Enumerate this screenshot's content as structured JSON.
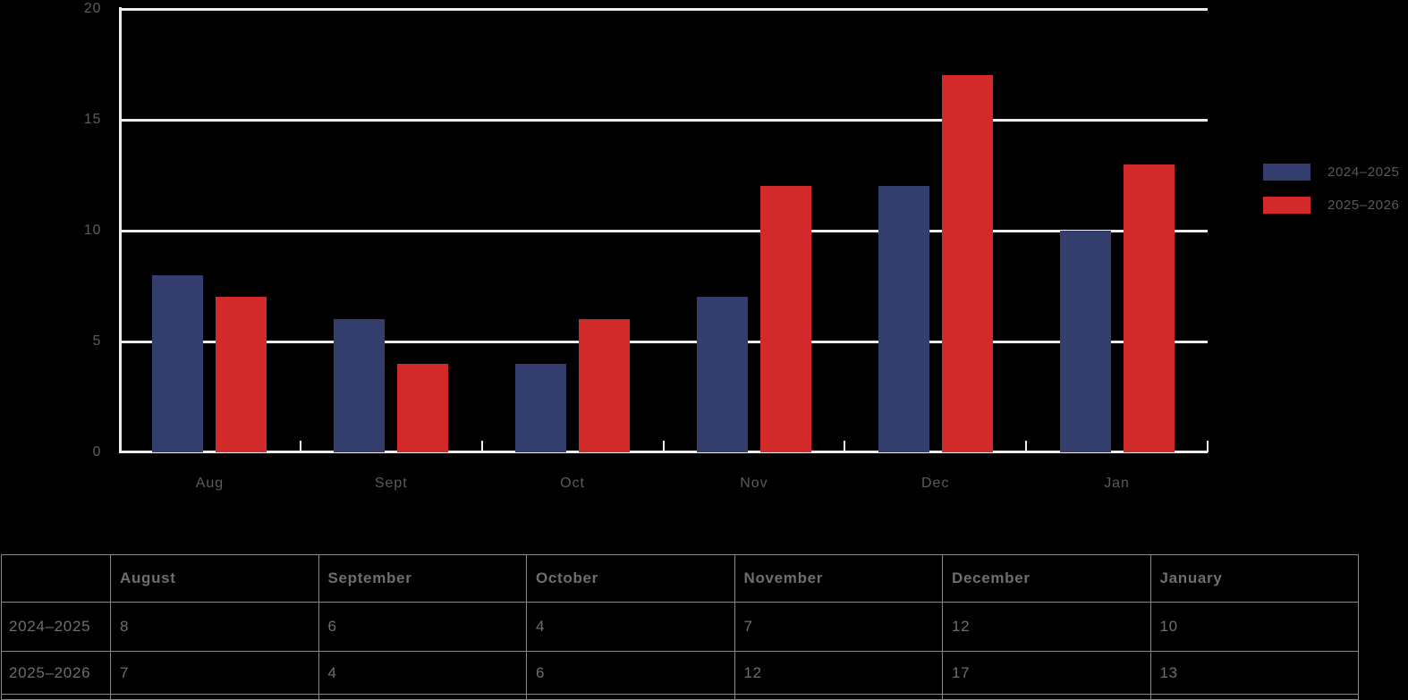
{
  "colors": {
    "background": "#000000",
    "grid": "#EDEDEF",
    "axis_text": "#5A5B5E",
    "legend_text": "#58595B",
    "table_text": "#6D6E71",
    "table_border": "#87888C"
  },
  "chart_data": {
    "type": "bar",
    "title": "",
    "xlabel": "",
    "ylabel": "",
    "categories": [
      "Aug",
      "Sept",
      "Oct",
      "Nov",
      "Dec",
      "Jan"
    ],
    "series": [
      {
        "name": "2024–2025",
        "color": "#343E6E",
        "values": [
          8,
          6,
          4,
          7,
          12,
          10
        ]
      },
      {
        "name": "2025–2026",
        "color": "#D2292B",
        "values": [
          7,
          4,
          6,
          12,
          17,
          13
        ]
      }
    ],
    "ylim": [
      0,
      20
    ],
    "yticks": [
      0,
      5,
      10,
      15,
      20
    ],
    "grid": "horizontal gridlines on",
    "legend_position": "right"
  },
  "table": {
    "headers": [
      "",
      "August",
      "September",
      "October",
      "November",
      "December",
      "January"
    ],
    "rows": [
      {
        "label": "2024–2025",
        "values": [
          "8",
          "6",
          "4",
          "7",
          "12",
          "10"
        ]
      },
      {
        "label": "2025–2026",
        "values": [
          "7",
          "4",
          "6",
          "12",
          "17",
          "13"
        ]
      }
    ]
  }
}
